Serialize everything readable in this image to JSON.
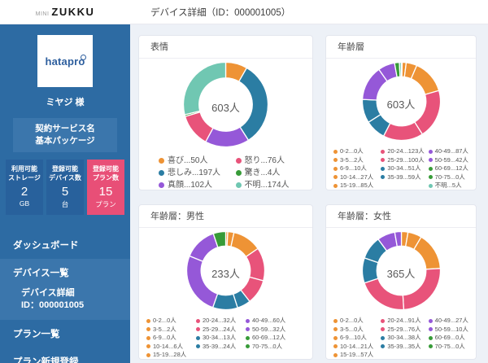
{
  "header": {
    "logo_mini": "MINI",
    "logo_main": "ZUKKU",
    "page_title": "デバイス詳細（ID：000001005）"
  },
  "sidebar": {
    "logo_text": "hatapro",
    "user_name": "ミヤジ 様",
    "contract_label": "契約サービス名",
    "contract_value": "基本パッケージ",
    "stats": [
      {
        "label_line1": "利用可能",
        "label_line2": "ストレージ",
        "value": "2",
        "unit": "GB"
      },
      {
        "label_line1": "登録可能",
        "label_line2": "デバイス数",
        "value": "5",
        "unit": "台"
      },
      {
        "label_line1": "登録可能",
        "label_line2": "プラン数",
        "value": "15",
        "unit": "プラン"
      }
    ],
    "menu": {
      "dashboard": "ダッシュボード",
      "device_list": "デバイス一覧",
      "device_detail": "デバイス詳細",
      "device_detail_id": "ID：000001005",
      "plan_list": "プラン一覧",
      "plan_new": "プラン新規登録"
    }
  },
  "colors": {
    "sidebar_bg": "#2d6ba3",
    "sidebar_box_bg": "#28619c",
    "sidebar_highlight_bg": "#3b76ac",
    "accent_pink": "#e84f77",
    "series_orange": "#ee9335",
    "series_pink": "#e8537a",
    "series_blue": "#2b7da3",
    "series_green": "#379b38",
    "series_purple": "#9558d8",
    "series_teal": "#70c7b2"
  },
  "chart_data": [
    {
      "type": "donut",
      "title": "表情",
      "center_label": "603人",
      "total": 603,
      "unit": "人",
      "slices": [
        {
          "label": "喜び",
          "value": 50,
          "color": "#ee9335"
        },
        {
          "label": "悲しみ",
          "value": 197,
          "color": "#2b7da3"
        },
        {
          "label": "真顔",
          "value": 102,
          "color": "#9558d8"
        },
        {
          "label": "怒り",
          "value": 76,
          "color": "#e8537a"
        },
        {
          "label": "驚き",
          "value": 4,
          "color": "#379b38"
        },
        {
          "label": "不明",
          "value": 174,
          "color": "#70c7b2"
        }
      ],
      "legend_columns": [
        [
          0,
          1,
          2
        ],
        [
          3,
          4,
          5
        ]
      ]
    },
    {
      "type": "donut",
      "title": "年齢層",
      "center_label": "603人",
      "total": 603,
      "unit": "人",
      "slices": [
        {
          "label": "0-2",
          "value": 0,
          "color": "#ee9335"
        },
        {
          "label": "3-5",
          "value": 2,
          "color": "#ee9335"
        },
        {
          "label": "6-9",
          "value": 10,
          "color": "#ee9335"
        },
        {
          "label": "10-14",
          "value": 27,
          "color": "#ee9335"
        },
        {
          "label": "15-19",
          "value": 85,
          "color": "#ee9335"
        },
        {
          "label": "20-24",
          "value": 123,
          "color": "#e8537a"
        },
        {
          "label": "25-29",
          "value": 100,
          "color": "#e8537a"
        },
        {
          "label": "30-34",
          "value": 51,
          "color": "#2b7da3"
        },
        {
          "label": "35-39",
          "value": 59,
          "color": "#2b7da3"
        },
        {
          "label": "40-49",
          "value": 87,
          "color": "#9558d8"
        },
        {
          "label": "50-59",
          "value": 42,
          "color": "#9558d8"
        },
        {
          "label": "60-69",
          "value": 12,
          "color": "#379b38"
        },
        {
          "label": "70-75",
          "value": 0,
          "color": "#379b38"
        },
        {
          "label": "不明",
          "value": 5,
          "color": "#70c7b2"
        }
      ],
      "legend_columns": [
        [
          0,
          1,
          2,
          3,
          4
        ],
        [
          5,
          6,
          7,
          8
        ],
        [
          9,
          10,
          11,
          12,
          13
        ]
      ]
    },
    {
      "type": "donut",
      "title": "年齢層：男性",
      "center_label": "233人",
      "total": 233,
      "unit": "人",
      "slices": [
        {
          "label": "0-2",
          "value": 0,
          "color": "#ee9335"
        },
        {
          "label": "3-5",
          "value": 2,
          "color": "#ee9335"
        },
        {
          "label": "6-9",
          "value": 0,
          "color": "#ee9335"
        },
        {
          "label": "10-14",
          "value": 6,
          "color": "#ee9335"
        },
        {
          "label": "15-19",
          "value": 28,
          "color": "#ee9335"
        },
        {
          "label": "20-24",
          "value": 32,
          "color": "#e8537a"
        },
        {
          "label": "25-29",
          "value": 24,
          "color": "#e8537a"
        },
        {
          "label": "30-34",
          "value": 13,
          "color": "#2b7da3"
        },
        {
          "label": "35-39",
          "value": 24,
          "color": "#2b7da3"
        },
        {
          "label": "40-49",
          "value": 60,
          "color": "#9558d8"
        },
        {
          "label": "50-59",
          "value": 32,
          "color": "#9558d8"
        },
        {
          "label": "60-69",
          "value": 12,
          "color": "#379b38"
        },
        {
          "label": "70-75",
          "value": 0,
          "color": "#379b38"
        }
      ],
      "legend_columns": [
        [
          0,
          1,
          2,
          3,
          4
        ],
        [
          5,
          6,
          7,
          8
        ],
        [
          9,
          10,
          11,
          12
        ]
      ]
    },
    {
      "type": "donut",
      "title": "年齢層：女性",
      "center_label": "365人",
      "total": 365,
      "unit": "人",
      "slices": [
        {
          "label": "0-2",
          "value": 0,
          "color": "#ee9335"
        },
        {
          "label": "3-5",
          "value": 0,
          "color": "#ee9335"
        },
        {
          "label": "6-9",
          "value": 10,
          "color": "#ee9335"
        },
        {
          "label": "10-14",
          "value": 21,
          "color": "#ee9335"
        },
        {
          "label": "15-19",
          "value": 57,
          "color": "#ee9335"
        },
        {
          "label": "20-24",
          "value": 91,
          "color": "#e8537a"
        },
        {
          "label": "25-29",
          "value": 76,
          "color": "#e8537a"
        },
        {
          "label": "30-34",
          "value": 38,
          "color": "#2b7da3"
        },
        {
          "label": "35-39",
          "value": 35,
          "color": "#2b7da3"
        },
        {
          "label": "40-49",
          "value": 27,
          "color": "#9558d8"
        },
        {
          "label": "50-59",
          "value": 10,
          "color": "#9558d8"
        },
        {
          "label": "60-69",
          "value": 0,
          "color": "#379b38"
        },
        {
          "label": "70-75",
          "value": 0,
          "color": "#379b38"
        }
      ],
      "legend_columns": [
        [
          0,
          1,
          2,
          3,
          4
        ],
        [
          5,
          6,
          7,
          8
        ],
        [
          9,
          10,
          11,
          12
        ]
      ]
    }
  ]
}
